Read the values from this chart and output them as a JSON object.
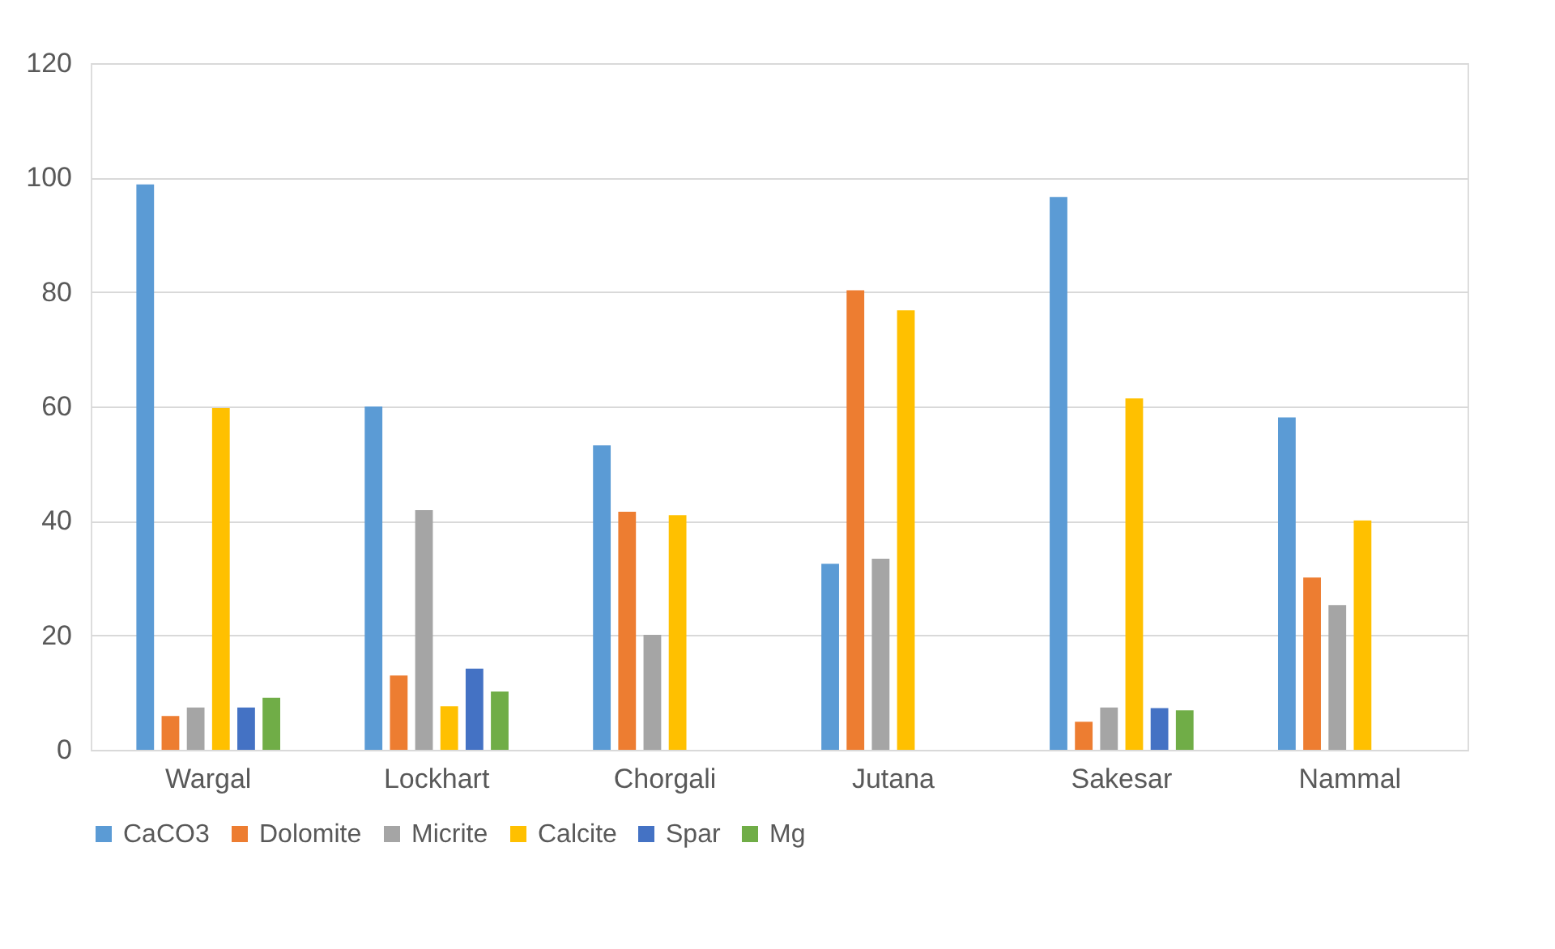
{
  "chart_data": {
    "type": "bar",
    "categories": [
      "Wargal",
      "Lockhart",
      "Chorgali",
      "Jutana",
      "Sakesar",
      "Nammal"
    ],
    "series": [
      {
        "name": "CaCO3",
        "color": "#5b9bd5",
        "values": [
          98.8,
          60,
          53.2,
          32.5,
          96.6,
          58.1
        ]
      },
      {
        "name": "Dolomite",
        "color": "#ed7d31",
        "values": [
          5.9,
          13,
          41.6,
          80.3,
          4.9,
          30.1
        ]
      },
      {
        "name": "Micrite",
        "color": "#a5a5a5",
        "values": [
          7.4,
          41.9,
          20.1,
          33.4,
          7.4,
          25.3
        ]
      },
      {
        "name": "Calcite",
        "color": "#ffc000",
        "values": [
          59.7,
          7.6,
          41,
          76.8,
          61.4,
          40.1
        ]
      },
      {
        "name": "Spar",
        "color": "#4472c4",
        "values": [
          7.4,
          14.2,
          null,
          null,
          7.3,
          null
        ]
      },
      {
        "name": "Mg",
        "color": "#70ad47",
        "values": [
          9.1,
          10.2,
          null,
          null,
          6.9,
          null
        ]
      }
    ],
    "ylim": [
      0,
      120
    ],
    "yticks": [
      0,
      20,
      40,
      60,
      80,
      100,
      120
    ],
    "grid": "y",
    "legend": "bottom"
  }
}
